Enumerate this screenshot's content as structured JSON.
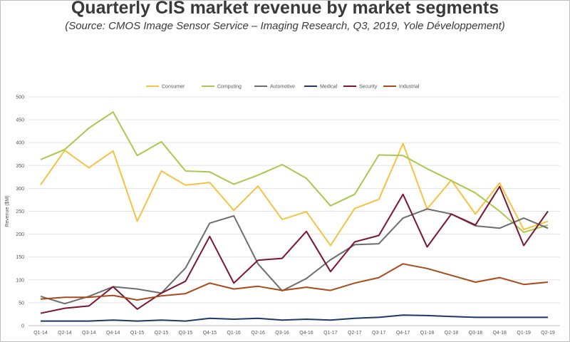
{
  "chart_data": {
    "type": "line",
    "title": "Quarterly CIS market revenue by market segments",
    "subtitle": "(Source: CMOS Image Sensor Service – Imaging Research, Q3, 2019, Yole Développement)",
    "xlabel": "",
    "ylabel": "Revenue ($M)",
    "ylim": [
      0,
      500
    ],
    "yticks": [
      0,
      50,
      100,
      150,
      200,
      250,
      300,
      350,
      400,
      450,
      500
    ],
    "grid": true,
    "legend_position": "top-center",
    "categories": [
      "Q1-14",
      "Q2-14",
      "Q3-14",
      "Q4-14",
      "Q1-15",
      "Q2-15",
      "Q3-15",
      "Q4-15",
      "Q1-16",
      "Q2-16",
      "Q3-16",
      "Q4-16",
      "Q1-17",
      "Q2-17",
      "Q3-17",
      "Q4-17",
      "Q1-18",
      "Q2-18",
      "Q3-18",
      "Q4-18",
      "Q1-19",
      "Q2-19"
    ],
    "series": [
      {
        "name": "Consumer",
        "color": "#f5c242",
        "values": [
          308,
          383,
          345,
          382,
          228,
          338,
          307,
          313,
          252,
          305,
          232,
          249,
          175,
          256,
          276,
          398,
          255,
          318,
          244,
          312,
          210,
          228
        ]
      },
      {
        "name": "Computing",
        "color": "#a8c94d",
        "values": [
          363,
          385,
          432,
          467,
          372,
          402,
          338,
          336,
          309,
          329,
          352,
          322,
          262,
          287,
          373,
          372,
          343,
          317,
          290,
          250,
          204,
          220
        ]
      },
      {
        "name": "Automotive",
        "color": "#6d6d6d",
        "values": [
          64,
          48,
          64,
          85,
          80,
          71,
          126,
          224,
          240,
          135,
          76,
          103,
          144,
          177,
          179,
          235,
          255,
          244,
          218,
          213,
          235,
          213
        ]
      },
      {
        "name": "Medical",
        "color": "#1f3864",
        "values": [
          10,
          10,
          10,
          12,
          10,
          12,
          10,
          16,
          14,
          16,
          12,
          14,
          12,
          16,
          18,
          23,
          22,
          20,
          18,
          18,
          18,
          18
        ]
      },
      {
        "name": "Security",
        "color": "#7b1530",
        "values": [
          27,
          38,
          43,
          85,
          36,
          71,
          97,
          195,
          93,
          143,
          147,
          206,
          118,
          183,
          197,
          287,
          172,
          244,
          220,
          304,
          175,
          250
        ]
      },
      {
        "name": "Industrial",
        "color": "#a84a1a",
        "values": [
          58,
          62,
          62,
          66,
          56,
          65,
          70,
          93,
          80,
          86,
          77,
          84,
          77,
          93,
          105,
          135,
          125,
          110,
          95,
          105,
          90,
          95
        ]
      }
    ]
  }
}
